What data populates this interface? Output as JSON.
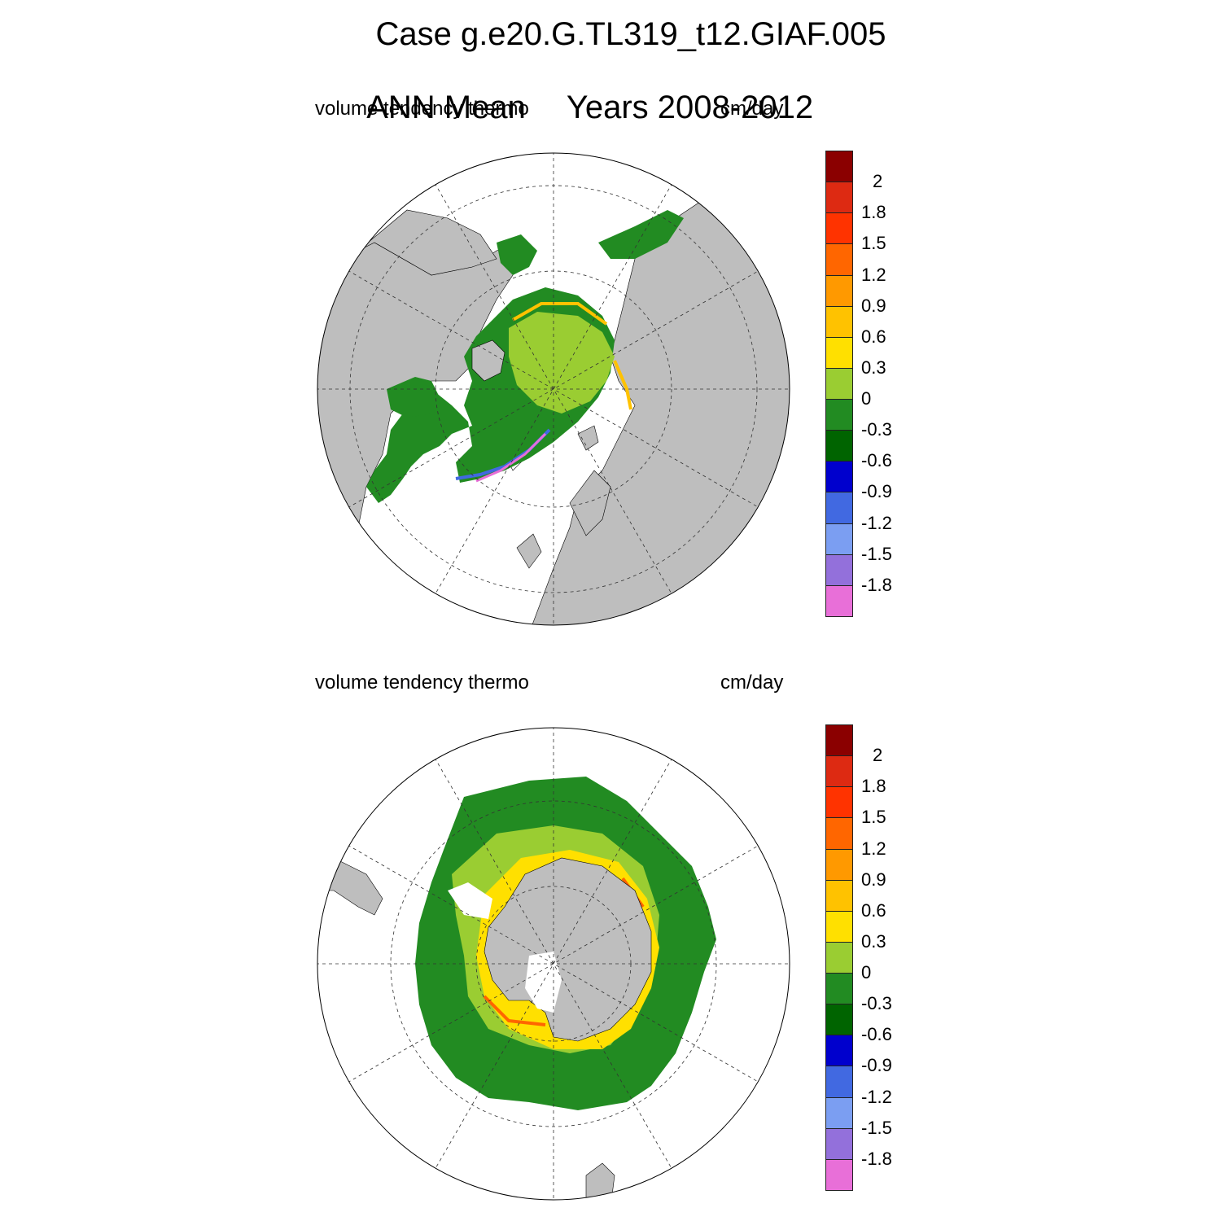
{
  "title_line1": "Case g.e20.G.TL319_t12.GIAF.005",
  "title_line2_left": "ANN Mean",
  "title_line2_right": "Years 2008-2012",
  "panels": [
    {
      "id": "north",
      "variable_label": "volume tendency thermo",
      "units_label": "cm/day",
      "hemisphere": "north"
    },
    {
      "id": "south",
      "variable_label": "volume tendency thermo",
      "units_label": "cm/day",
      "hemisphere": "south"
    }
  ],
  "colorbar": {
    "colors": [
      "#e86fd8",
      "#9370db",
      "#7b9ef2",
      "#4169e1",
      "#0000cd",
      "#006400",
      "#228b22",
      "#9acd32",
      "#ffe000",
      "#ffc200",
      "#ff9900",
      "#ff6600",
      "#ff3300",
      "#dd2a12",
      "#8b0000"
    ],
    "labels": [
      "-1.8",
      "-1.5",
      "-1.2",
      "-0.9",
      "-0.6",
      "-0.3",
      "0",
      "0.3",
      "0.6",
      "0.9",
      "1.2",
      "1.5",
      "1.8",
      "2"
    ]
  },
  "map_colors": {
    "land": "#bebebe",
    "ocean": "#ffffff",
    "grid": "#333333"
  }
}
